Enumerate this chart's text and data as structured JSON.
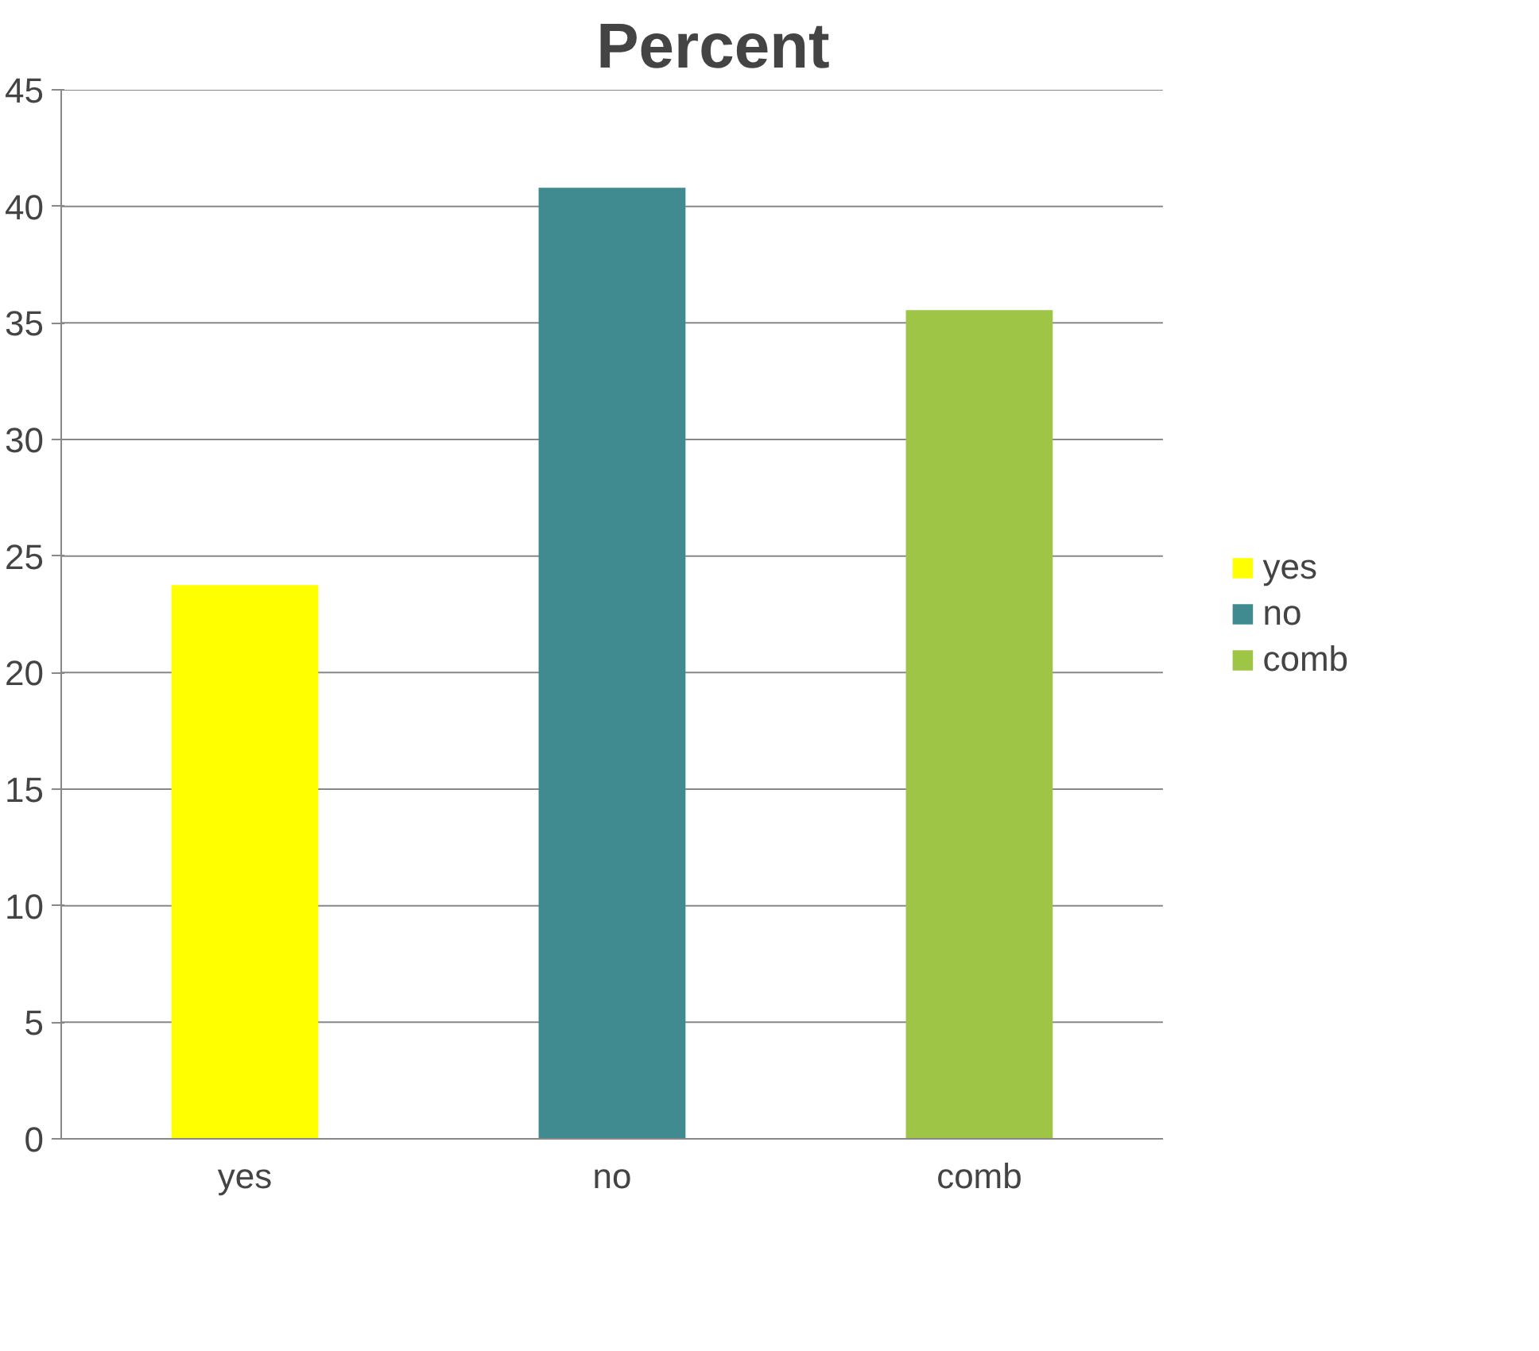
{
  "chart_data": {
    "type": "bar",
    "title": "Percent",
    "categories": [
      "yes",
      "no",
      "comb"
    ],
    "series": [
      {
        "name": "yes",
        "color": "#ffff00",
        "values": [
          23.75,
          null,
          null
        ]
      },
      {
        "name": "no",
        "color": "#3f8b8f",
        "values": [
          null,
          40.8,
          null
        ]
      },
      {
        "name": "comb",
        "color": "#9fc547",
        "values": [
          null,
          null,
          35.55
        ]
      }
    ],
    "ylim": [
      0,
      45
    ],
    "yticks": [
      0,
      5,
      10,
      15,
      20,
      25,
      30,
      35,
      40,
      45
    ],
    "grid": "y",
    "legend": "right"
  }
}
